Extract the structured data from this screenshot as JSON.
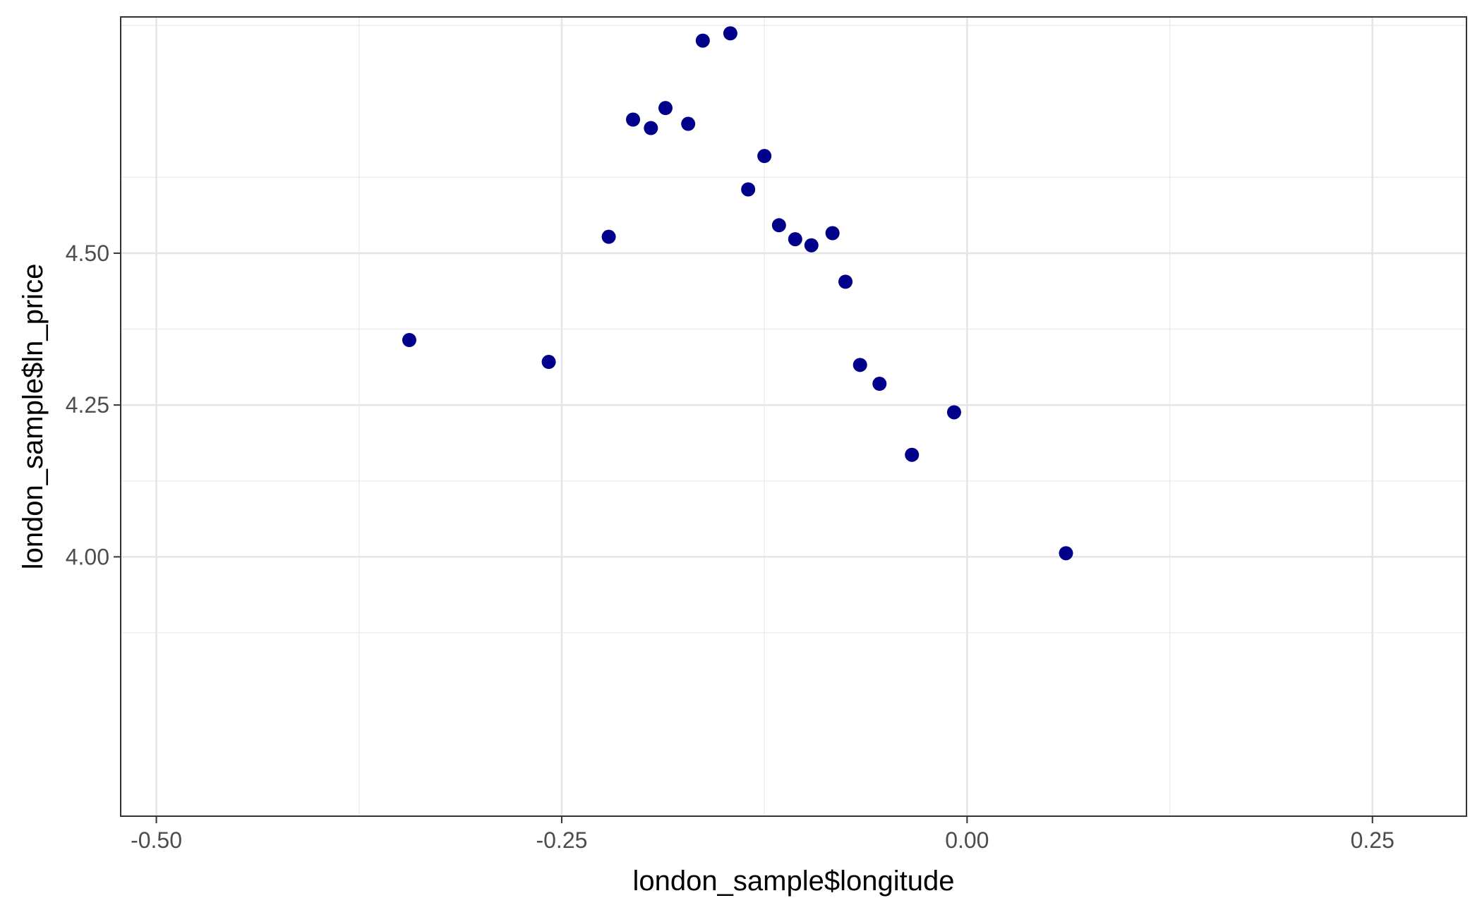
{
  "chart_data": {
    "type": "scatter",
    "title": "",
    "xlabel": "london_sample$longitude",
    "ylabel": "london_sample$ln_price",
    "xlim": [
      -0.522,
      0.308
    ],
    "ylim": [
      3.573,
      4.889
    ],
    "x_ticks": [
      -0.5,
      -0.25,
      0.0,
      0.25
    ],
    "x_tick_labels": [
      "-0.50",
      "-0.25",
      "0.00",
      "0.25"
    ],
    "y_ticks": [
      4.0,
      4.25,
      4.5
    ],
    "y_tick_labels": [
      "4.00",
      "4.25",
      "4.50"
    ],
    "grid": true,
    "point_color": "#00008b",
    "points": [
      {
        "x": -0.146,
        "y": 4.862
      },
      {
        "x": -0.163,
        "y": 4.85
      },
      {
        "x": -0.186,
        "y": 4.739
      },
      {
        "x": -0.206,
        "y": 4.72
      },
      {
        "x": -0.172,
        "y": 4.713
      },
      {
        "x": -0.195,
        "y": 4.706
      },
      {
        "x": -0.125,
        "y": 4.66
      },
      {
        "x": -0.135,
        "y": 4.605
      },
      {
        "x": -0.116,
        "y": 4.546
      },
      {
        "x": -0.221,
        "y": 4.527
      },
      {
        "x": -0.083,
        "y": 4.533
      },
      {
        "x": -0.106,
        "y": 4.523
      },
      {
        "x": -0.096,
        "y": 4.513
      },
      {
        "x": -0.075,
        "y": 4.453
      },
      {
        "x": -0.344,
        "y": 4.357
      },
      {
        "x": -0.258,
        "y": 4.321
      },
      {
        "x": -0.066,
        "y": 4.316
      },
      {
        "x": -0.054,
        "y": 4.285
      },
      {
        "x": -0.008,
        "y": 4.238
      },
      {
        "x": -0.034,
        "y": 4.168
      },
      {
        "x": 0.061,
        "y": 4.006
      }
    ]
  }
}
